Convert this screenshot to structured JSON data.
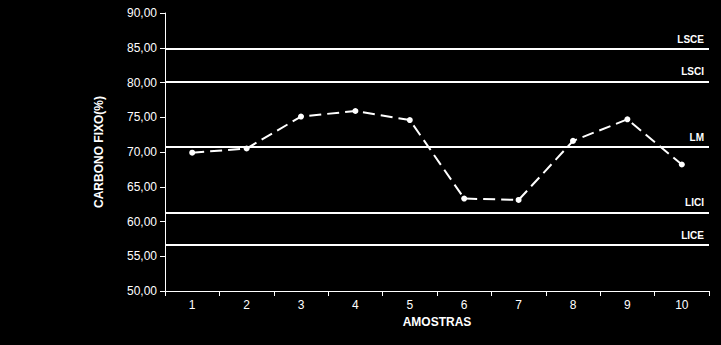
{
  "chart_data": {
    "type": "line",
    "x_label": "AMOSTRAS",
    "y_label": "CARBONO FIXO(%)",
    "categories": [
      "1",
      "2",
      "3",
      "4",
      "5",
      "6",
      "7",
      "8",
      "9",
      "10"
    ],
    "values": [
      69.9,
      70.5,
      75.1,
      75.9,
      74.6,
      63.3,
      63.1,
      71.6,
      74.7,
      68.2
    ],
    "color": "#ffffff",
    "line_style": "dashed",
    "marker": "circle",
    "limits": [
      {
        "label": "LSCE",
        "value": 84.8
      },
      {
        "label": "LSCI",
        "value": 80.1
      },
      {
        "label": "LM",
        "value": 70.7
      },
      {
        "label": "LICI",
        "value": 61.3
      },
      {
        "label": "LICE",
        "value": 56.6
      }
    ],
    "ylim": [
      50,
      90
    ],
    "yticks": [
      {
        "value": 50,
        "label": "50,00"
      },
      {
        "value": 55,
        "label": "55,00"
      },
      {
        "value": 60,
        "label": "60,00"
      },
      {
        "value": 65,
        "label": "65,00"
      },
      {
        "value": 70,
        "label": "70,00"
      },
      {
        "value": 75,
        "label": "75,00"
      },
      {
        "value": 80,
        "label": "80,00"
      },
      {
        "value": 85,
        "label": "85,00"
      },
      {
        "value": 90,
        "label": "90,00"
      }
    ],
    "grid": false
  }
}
